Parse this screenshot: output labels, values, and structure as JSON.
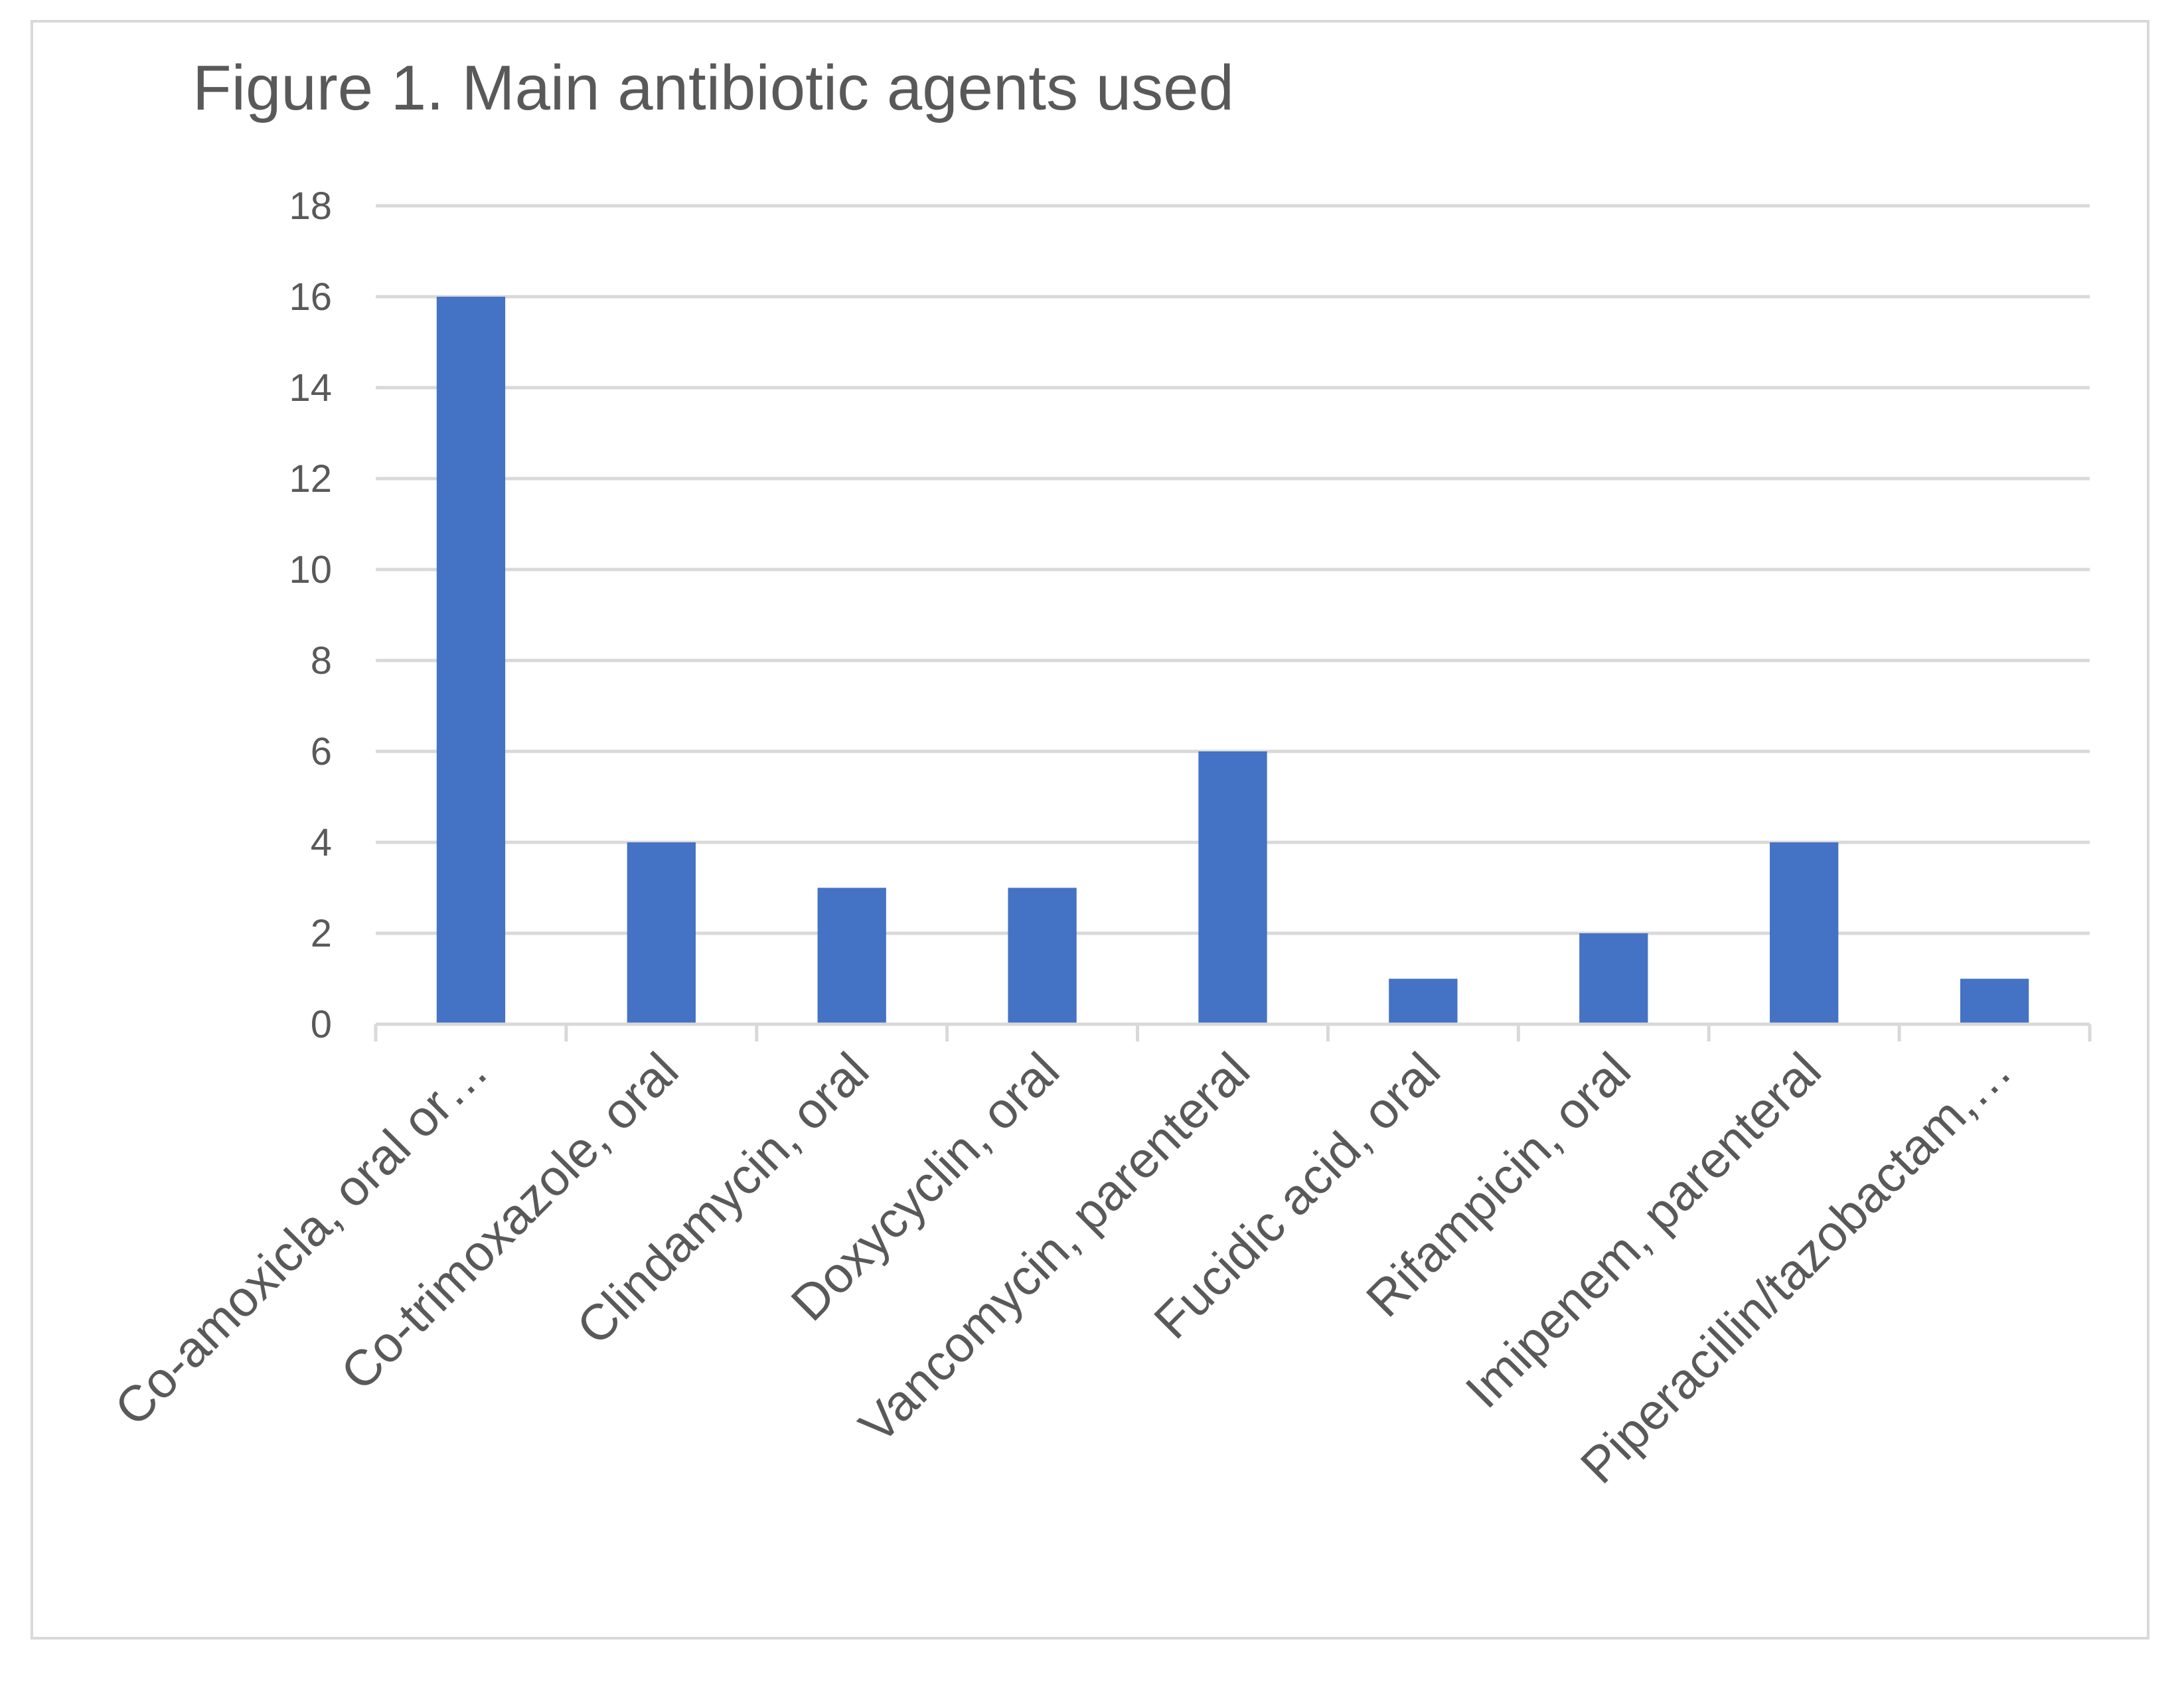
{
  "chart_data": {
    "type": "bar",
    "title": "Figure 1. Main antibiotic agents used",
    "xlabel": "",
    "ylabel": "",
    "categories": [
      "Co-amoxicla, oral or…",
      "Co-trimoxazole, oral",
      "Clindamycin, oral",
      "Doxycyclin, oral",
      "Vancomycin, parenteral",
      "Fucidic acid, oral",
      "Rifampicin, oral",
      "Imipenem, parenteral",
      "Piperacillin/tazobactam,…"
    ],
    "values": [
      16,
      4,
      3,
      3,
      6,
      1,
      2,
      4,
      1
    ],
    "ylim": [
      0,
      18
    ],
    "yticks": [
      "0",
      "2",
      "4",
      "6",
      "8",
      "10",
      "12",
      "14",
      "16",
      "18"
    ],
    "grid": true,
    "legend": "none",
    "colors": {
      "bar": "#4472c4",
      "grid": "#d9d9d9",
      "axis": "#d9d9d9",
      "text": "#595959",
      "border": "#d9d9d9"
    }
  }
}
